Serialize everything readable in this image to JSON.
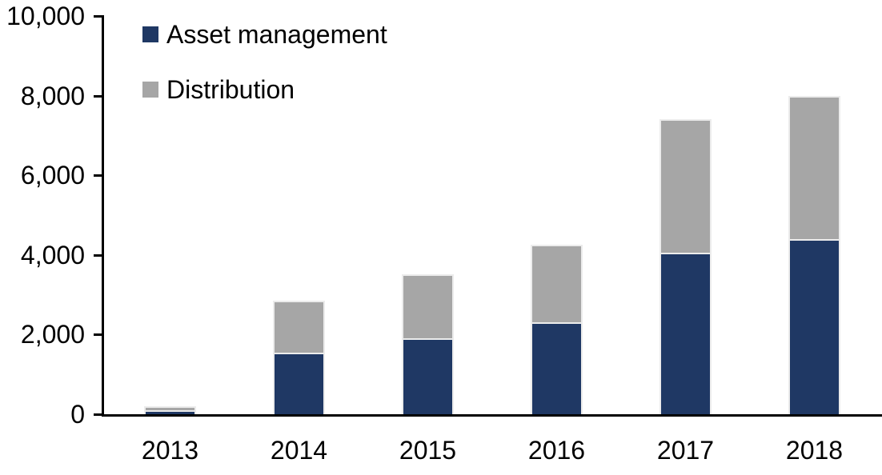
{
  "legend": {
    "items": [
      {
        "label": "Asset management",
        "color": "#1f3864"
      },
      {
        "label": "Distribution",
        "color": "#a6a6a6"
      }
    ]
  },
  "chart_data": {
    "type": "bar",
    "stacked": true,
    "title": "",
    "xlabel": "",
    "ylabel": "",
    "categories": [
      "2013",
      "2014",
      "2015",
      "2016",
      "2017",
      "2018"
    ],
    "series": [
      {
        "name": "Asset management",
        "color": "#1f3864",
        "values": [
          100,
          1550,
          1900,
          2300,
          4050,
          4400
        ]
      },
      {
        "name": "Distribution",
        "color": "#a6a6a6",
        "values": [
          100,
          1300,
          1600,
          1950,
          3350,
          3600
        ]
      }
    ],
    "totals": [
      200,
      2850,
      3500,
      4250,
      7400,
      8000
    ],
    "ylim": [
      0,
      10000
    ],
    "yticks": [
      0,
      2000,
      4000,
      6000,
      8000,
      10000
    ],
    "ytick_labels": [
      "0",
      "2,000",
      "4,000",
      "6,000",
      "8,000",
      "10,000"
    ],
    "grid": false,
    "legend_position": "top-left-inside"
  },
  "colors": {
    "axis": "#000000",
    "text": "#000000",
    "background": "#ffffff",
    "bar_outline": "#ececec"
  }
}
